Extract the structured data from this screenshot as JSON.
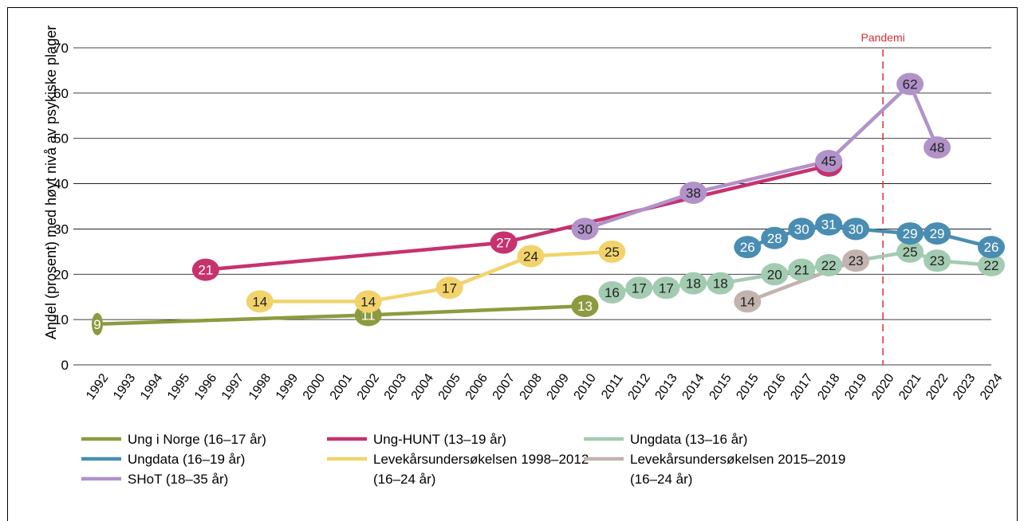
{
  "chart_data": {
    "type": "line",
    "ylabel": "Andel (prosent) med høyt nivå av psykiske plager",
    "xlabel": "",
    "ylim": [
      0,
      70
    ],
    "yticks": [
      0,
      10,
      20,
      30,
      40,
      50,
      60,
      70
    ],
    "grid": "horizontal",
    "x_categories": [
      "1992",
      "1993",
      "1994",
      "1995",
      "1996",
      "1997",
      "1998",
      "1999",
      "2000",
      "2001",
      "2002",
      "2003",
      "2004",
      "2005",
      "2006",
      "2007",
      "2008",
      "2009",
      "2010",
      "2011",
      "2012",
      "2013",
      "2014",
      "2015",
      "2015",
      "2016",
      "2017",
      "2018",
      "2019",
      "2020",
      "2021",
      "2022",
      "2023",
      "2024"
    ],
    "annotation": {
      "label": "Pandemi",
      "at_index": 29,
      "color": "#d62f3a"
    },
    "legend_position": "bottom",
    "series": [
      {
        "name": "Ung i Norge (16–17 år)",
        "color": "#8e9a3f",
        "points": [
          [
            0,
            9
          ],
          [
            10,
            11
          ],
          [
            18,
            13
          ]
        ],
        "connect": [
          [
            0,
            18
          ]
        ]
      },
      {
        "name": "Ung-HUNT (13–19 år)",
        "color": "#c7326e",
        "points": [
          [
            4,
            21
          ],
          [
            15,
            27
          ],
          [
            27,
            44
          ]
        ],
        "label_points": [
          [
            4,
            21
          ],
          [
            15,
            27
          ]
        ]
      },
      {
        "name": "Ungdata (13–16 år)",
        "color": "#a3cbb1",
        "points": [
          [
            19,
            16
          ],
          [
            20,
            17
          ],
          [
            21,
            17
          ],
          [
            22,
            18
          ],
          [
            23,
            18
          ],
          [
            25,
            20
          ],
          [
            26,
            21
          ],
          [
            27,
            22
          ],
          [
            30,
            25
          ],
          [
            31,
            23
          ],
          [
            33,
            22
          ]
        ]
      },
      {
        "name": "Ungdata (16–19 år)",
        "color": "#4a8db2",
        "points": [
          [
            24,
            26
          ],
          [
            25,
            28
          ],
          [
            26,
            30
          ],
          [
            27,
            31
          ],
          [
            28,
            30
          ],
          [
            30,
            29
          ],
          [
            31,
            29
          ],
          [
            33,
            26
          ]
        ]
      },
      {
        "name": "Levekårsundersøkelsen 1998–2012 (16–24 år)",
        "color": "#f2d36b",
        "points": [
          [
            6,
            14
          ],
          [
            10,
            14
          ],
          [
            13,
            17
          ],
          [
            16,
            24
          ],
          [
            19,
            25
          ]
        ]
      },
      {
        "name": "Levekårsundersøkelsen 2015–2019 (16–24 år)",
        "color": "#c2b3ae",
        "points": [
          [
            24,
            14
          ],
          [
            28,
            23
          ]
        ]
      },
      {
        "name": "SHoT (18–35 år)",
        "color": "#b192c9",
        "points": [
          [
            18,
            30
          ],
          [
            22,
            38
          ],
          [
            27,
            45
          ],
          [
            30,
            62
          ],
          [
            31,
            48
          ]
        ]
      }
    ]
  },
  "legend": [
    {
      "label": "Ung i Norge (16–17 år)",
      "color": "#8e9a3f",
      "label2": ""
    },
    {
      "label": "Ung-HUNT (13–19 år)",
      "color": "#c7326e",
      "label2": ""
    },
    {
      "label": "Ungdata (13–16 år)",
      "color": "#a3cbb1",
      "label2": ""
    },
    {
      "label": "Ungdata (16–19 år)",
      "color": "#4a8db2",
      "label2": ""
    },
    {
      "label": "Levekårsundersøkelsen 1998–2012",
      "color": "#f2d36b",
      "label2": "(16–24 år)"
    },
    {
      "label": "Levekårsundersøkelsen 2015–2019",
      "color": "#c2b3ae",
      "label2": "(16–24 år)"
    },
    {
      "label": "SHoT (18–35 år)",
      "color": "#b192c9",
      "label2": ""
    }
  ]
}
